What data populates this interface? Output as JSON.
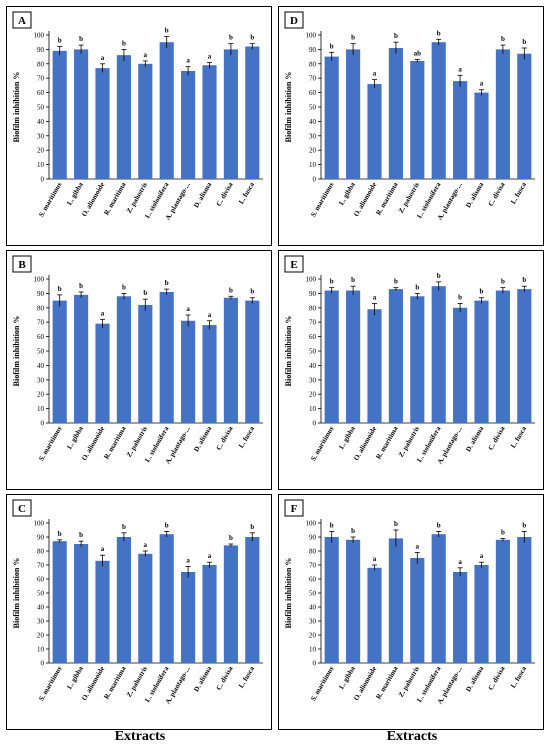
{
  "figure": {
    "bar_color": "#4472C4",
    "error_color": "#000000",
    "x_axis_titles": {
      "left": "Extracts",
      "right": "Extracts"
    }
  },
  "chart_data": [
    {
      "type": "bar",
      "panel_letter": "A",
      "categories": [
        "S. maritimus",
        "L. gibba",
        "O. aliomoide",
        "R. maritima",
        "Z. palustris",
        "L. stolonifera",
        "A. plantago-...",
        "D. alisma",
        "C. divisa",
        "L. fusca"
      ],
      "values": [
        89,
        90,
        77,
        86,
        80,
        95,
        75,
        79,
        90,
        92
      ],
      "errors": [
        3,
        3,
        3,
        4,
        2,
        4,
        3,
        2,
        4,
        2
      ],
      "letters": [
        "b",
        "b",
        "a",
        "b",
        "a",
        "b",
        "a",
        "a",
        "b",
        "b"
      ],
      "ylabel": "Biofilm inhibition %",
      "ylim": [
        0,
        100
      ],
      "yticks": [
        0,
        10,
        20,
        30,
        40,
        50,
        60,
        70,
        80,
        90,
        100
      ]
    },
    {
      "type": "bar",
      "panel_letter": "D",
      "categories": [
        "S. maritimus",
        "L. gibba",
        "O. aliomoide",
        "R. maritima",
        "Z. palustris",
        "L. stolonifera",
        "A. plantago-...",
        "D. alisma",
        "C. divisa",
        "L. fusca"
      ],
      "values": [
        85,
        90,
        66,
        91,
        82,
        95,
        68,
        60,
        90,
        87
      ],
      "errors": [
        3,
        4,
        3,
        4,
        1,
        2,
        4,
        2,
        3,
        4
      ],
      "letters": [
        "b",
        "b",
        "a",
        "b",
        "ab",
        "b",
        "a",
        "a",
        "b",
        "b"
      ],
      "ylabel": "Biofilm inhibition %",
      "ylim": [
        0,
        100
      ],
      "yticks": [
        0,
        10,
        20,
        30,
        40,
        50,
        60,
        70,
        80,
        90,
        100
      ]
    },
    {
      "type": "bar",
      "panel_letter": "B",
      "categories": [
        "S. maritimus",
        "L. gibba",
        "O. aliomoide",
        "R. maritima",
        "Z. palustris",
        "L. stolonifera",
        "A. plantago-...",
        "D. alisma",
        "C. divisa",
        "L. fusca"
      ],
      "values": [
        85,
        89,
        69,
        88,
        82,
        91,
        71,
        68,
        87,
        85
      ],
      "errors": [
        4,
        2,
        3,
        2,
        4,
        2,
        4,
        3,
        1,
        2
      ],
      "letters": [
        "b",
        "b",
        "a",
        "b",
        "b",
        "b",
        "a",
        "a",
        "b",
        "b"
      ],
      "ylabel": "Biofilm inhibition %",
      "ylim": [
        0,
        100
      ],
      "yticks": [
        0,
        10,
        20,
        30,
        40,
        50,
        60,
        70,
        80,
        90,
        100
      ]
    },
    {
      "type": "bar",
      "panel_letter": "E",
      "categories": [
        "S. maritimus",
        "L. gibba",
        "O. aliomoide",
        "R. maritima",
        "Z. palustris",
        "L. stolonifera",
        "A. plantago-...",
        "D. alisma",
        "C. divisa",
        "L. fusca"
      ],
      "values": [
        92,
        92,
        79,
        93,
        88,
        95,
        80,
        85,
        92,
        93
      ],
      "errors": [
        2,
        3,
        4,
        1,
        2,
        3,
        3,
        2,
        2,
        2
      ],
      "letters": [
        "b",
        "b",
        "a",
        "b",
        "b",
        "b",
        "b",
        "b",
        "b",
        "b"
      ],
      "ylabel": "Biofilm inhibition %",
      "ylim": [
        0,
        100
      ],
      "yticks": [
        0,
        10,
        20,
        30,
        40,
        50,
        60,
        70,
        80,
        90,
        100
      ]
    },
    {
      "type": "bar",
      "panel_letter": "C",
      "categories": [
        "S. maritimus",
        "L. gibba",
        "O. aliomoide",
        "R. maritima",
        "Z. palustris",
        "L. stolonifera",
        "A. plantago-...",
        "D. alisma",
        "C. divisa",
        "L. fusca"
      ],
      "values": [
        87,
        85,
        73,
        90,
        78,
        92,
        65,
        70,
        84,
        90
      ],
      "errors": [
        1,
        2,
        4,
        3,
        2,
        2,
        4,
        2,
        1,
        3
      ],
      "letters": [
        "b",
        "b",
        "a",
        "b",
        "a",
        "b",
        "a",
        "a",
        "b",
        "b"
      ],
      "ylabel": "Biofilm inhibition %",
      "ylim": [
        0,
        100
      ],
      "yticks": [
        0,
        10,
        20,
        30,
        40,
        50,
        60,
        70,
        80,
        90,
        100
      ]
    },
    {
      "type": "bar",
      "panel_letter": "F",
      "categories": [
        "S. maritimus",
        "L. gibba",
        "O. aliomoide",
        "R. maritima",
        "Z. palustris",
        "L. stolonifera",
        "A. plantago-...",
        "D. alisma",
        "C. divisa",
        "L. fusca"
      ],
      "values": [
        90,
        88,
        68,
        89,
        75,
        92,
        65,
        70,
        88,
        90
      ],
      "errors": [
        4,
        2,
        2,
        6,
        4,
        2,
        3,
        2,
        1,
        4
      ],
      "letters": [
        "b",
        "b",
        "a",
        "b",
        "a",
        "b",
        "a",
        "a",
        "b",
        "b"
      ],
      "ylabel": "Biofilm inhibition %",
      "ylim": [
        0,
        100
      ],
      "yticks": [
        0,
        10,
        20,
        30,
        40,
        50,
        60,
        70,
        80,
        90,
        100
      ]
    }
  ]
}
